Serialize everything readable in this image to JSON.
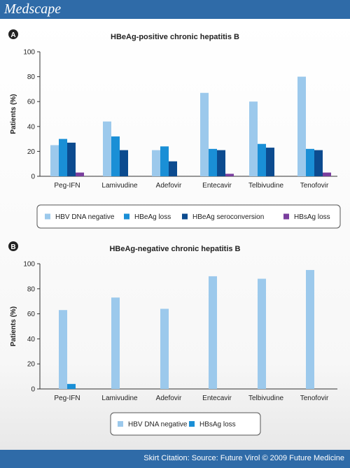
{
  "header": {
    "logo_text": "Medscape"
  },
  "footer": {
    "citation": "Skirt Citation: Source: Future Virol © 2009 Future Medicine"
  },
  "colors": {
    "hbv_dna_negative": "#9cc9ec",
    "hbeag_loss": "#1a8fd6",
    "hbeag_seroconversion": "#0c4b8f",
    "hbsag_loss": "#7a3e9e"
  },
  "chart_data": [
    {
      "type": "bar",
      "panel_label": "A",
      "title": "HBeAg-positive chronic hepatitis B",
      "ylabel": "Patients (%)",
      "ylim": [
        0,
        100
      ],
      "yticks": [
        "0",
        "20",
        "40",
        "60",
        "80",
        "100"
      ],
      "categories": [
        "Peg-IFN",
        "Lamivudine",
        "Adefovir",
        "Entecavir",
        "Telbivudine",
        "Tenofovir"
      ],
      "series": [
        {
          "name": "HBV DNA negative",
          "color": "#9cc9ec",
          "values": [
            25,
            44,
            21,
            67,
            60,
            80
          ]
        },
        {
          "name": "HBeAg loss",
          "color": "#1a8fd6",
          "values": [
            30,
            32,
            24,
            22,
            26,
            22
          ]
        },
        {
          "name": "HBeAg seroconversion",
          "color": "#0c4b8f",
          "values": [
            27,
            21,
            12,
            21,
            23,
            21
          ]
        },
        {
          "name": "HBsAg loss",
          "color": "#7a3e9e",
          "values": [
            3,
            0,
            0,
            2,
            0,
            3
          ]
        }
      ]
    },
    {
      "type": "bar",
      "panel_label": "B",
      "title": "HBeAg-negative chronic hepatitis B",
      "ylabel": "Patients (%)",
      "ylim": [
        0,
        100
      ],
      "yticks": [
        "0",
        "20",
        "40",
        "60",
        "80",
        "100"
      ],
      "categories": [
        "Peg-IFN",
        "Lamivudine",
        "Adefovir",
        "Entecavir",
        "Telbivudine",
        "Tenofovir"
      ],
      "series": [
        {
          "name": "HBV DNA negative",
          "color": "#9cc9ec",
          "values": [
            63,
            73,
            64,
            90,
            88,
            95
          ]
        },
        {
          "name": "HBsAg loss",
          "color": "#1a8fd6",
          "values": [
            4,
            0,
            0,
            0,
            0,
            0
          ]
        }
      ]
    }
  ]
}
